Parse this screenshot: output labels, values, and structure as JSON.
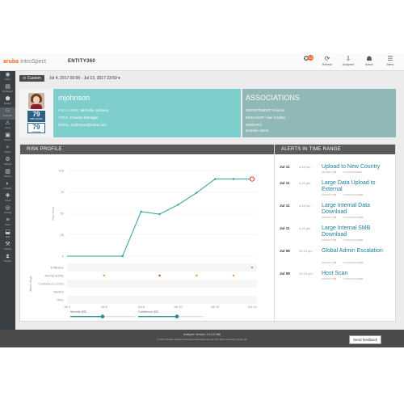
{
  "topbar": {
    "brand": "aruba",
    "brand_sub": "IntroSpect",
    "page": "ENTITY360",
    "icons": [
      {
        "name": "alerts-icon",
        "glyph": "✪",
        "label": "",
        "badge": "13"
      },
      {
        "name": "refresh-icon",
        "glyph": "⟳",
        "label": "Refresh"
      },
      {
        "name": "analyzed-icon",
        "glyph": "⇩",
        "label": "Analyzed"
      },
      {
        "name": "user-icon",
        "glyph": "☗",
        "label": "Admin"
      },
      {
        "name": "menu-icon",
        "glyph": "☰",
        "label": "Menu"
      }
    ]
  },
  "leftnav": [
    {
      "name": "nav-home",
      "glyph": "◉",
      "label": "Home"
    },
    {
      "name": "nav-dashboard",
      "glyph": "▤",
      "label": "Dashboard"
    },
    {
      "name": "nav-entities",
      "glyph": "⬢",
      "label": "Entities"
    },
    {
      "name": "nav-entity360",
      "glyph": "⚇",
      "label": "Entity360"
    },
    {
      "name": "nav-alerts",
      "glyph": "⚠",
      "label": "Alerts"
    },
    {
      "name": "nav-devices",
      "glyph": "▣",
      "label": "Devices"
    },
    {
      "name": "nav-search",
      "glyph": "⌕",
      "label": "Search"
    },
    {
      "name": "nav-network",
      "glyph": "⚙",
      "label": "Network"
    },
    {
      "name": "nav-reports",
      "glyph": "▥",
      "label": "Reports"
    },
    {
      "name": "nav-analytics",
      "glyph": "◐",
      "label": "Analytics"
    },
    {
      "name": "nav-threat",
      "glyph": "✚",
      "label": "Threat"
    },
    {
      "name": "nav-hunting",
      "glyph": "◎",
      "label": "Hunting"
    },
    {
      "name": "nav-rules",
      "glyph": "≡",
      "label": "Rules"
    },
    {
      "name": "nav-data",
      "glyph": "⬓",
      "label": "Data"
    },
    {
      "name": "nav-settings",
      "glyph": "⚒",
      "label": "Settings"
    },
    {
      "name": "nav-timeline",
      "glyph": "⧗",
      "label": "Timeline"
    }
  ],
  "filter": {
    "custom_label": "⊙ Custom",
    "date_range": "Jul 4, 2017 00:00 - Jul 13, 2017 23:59 ▾"
  },
  "entity": {
    "username": "mjohnson",
    "risk_score": "79",
    "risk_score_label": "RISK SCORE",
    "risk_change": "79",
    "risk_change_label": "CHANGE",
    "full_name_label": "FULL NAME:",
    "full_name": "Michelle Johnson",
    "title_label": "TITLE:",
    "title": "Finance Manager",
    "email_label": "EMAIL:",
    "email": "mjohnson@niara.com"
  },
  "associations": {
    "heading": "ASSOCIATIONS",
    "department_label": "DEPARTMENT:",
    "department": "Finance",
    "manager_label": "MANAGER:",
    "manager": "Hari Sridhar",
    "groups_label": "GROUPS:",
    "groups": "Domain Users"
  },
  "risk_panel": {
    "heading": "RISK PROFILE"
  },
  "alerts_panel": {
    "heading": "ALERTS IN TIME RANGE",
    "severity_label": "SEVERITY",
    "confidence_label": "CONFIDENCE",
    "items": [
      {
        "date": "Jul 11",
        "time": "4:15 pm",
        "title": "Upload to New Country",
        "severity": "60",
        "confidence": "60"
      },
      {
        "date": "Jul 11",
        "time": "4:15 pm",
        "title": "Large Data Upload to External",
        "severity": "60",
        "confidence": "100"
      },
      {
        "date": "Jul 11",
        "time": "4:15 pm",
        "title": "Large Internal Data Download",
        "severity": "60",
        "confidence": "100"
      },
      {
        "date": "Jul 11",
        "time": "4:15 pm",
        "title": "Large Internal SMB Download",
        "severity": "60",
        "confidence": "100"
      },
      {
        "date": "Jul 08",
        "time": "10:15 pm",
        "title": "Global Admin Escalation",
        "severity": "60",
        "confidence": "100"
      },
      {
        "date": "Jul 08",
        "time": "10:15 pm",
        "title": "Host Scan",
        "severity": "60",
        "confidence": "100"
      }
    ]
  },
  "chart_data": {
    "type": "line",
    "ylabel": "Risk Score",
    "ylim": [
      0,
      100
    ],
    "yticks": [
      "0",
      "25",
      "50",
      "75",
      "100"
    ],
    "xticks": [
      "Jul 4",
      "Jul 5",
      "Jul 6",
      "Jul 7",
      "Jul 8",
      "Jul 9",
      "Jul 10",
      "Jul 11",
      "Jul 12",
      "Jul 13",
      "Jul 14"
    ],
    "xtick_labels_shown": [
      "Jul 4",
      "Jul 6",
      "Jul 8",
      "Jul 10",
      "Jul 12",
      "Jul 14"
    ],
    "series": [
      {
        "values": [
          0,
          0,
          0,
          0,
          52,
          49,
          60,
          74,
          90,
          90,
          90
        ]
      }
    ],
    "stage_label": "Attack Stage",
    "stages": [
      "Exfiltration",
      "Internal Activity",
      "Command & Control",
      "Infection",
      "Other"
    ],
    "events": [
      {
        "x": 10,
        "stage": 0,
        "color": "#f0a050"
      },
      {
        "x": 2,
        "stage": 1,
        "color": "#f0a050"
      },
      {
        "x": 5,
        "stage": 1,
        "color": "#e05020"
      },
      {
        "x": 7,
        "stage": 1,
        "color": "#f0a050"
      },
      {
        "x": 9,
        "stage": 1,
        "color": "#f0a050"
      }
    ],
    "sliders": [
      {
        "label": "Severity (50)",
        "value": 50
      },
      {
        "label": "Confidence (60)",
        "value": 60
      }
    ]
  },
  "footer": {
    "version": "Analyzer Version: 2.2.0.0.388",
    "copyright": "© 2017 Hewlett Packard Enterprise Development LP | All rights reserved | About Us",
    "feedback": "Send feedback"
  }
}
